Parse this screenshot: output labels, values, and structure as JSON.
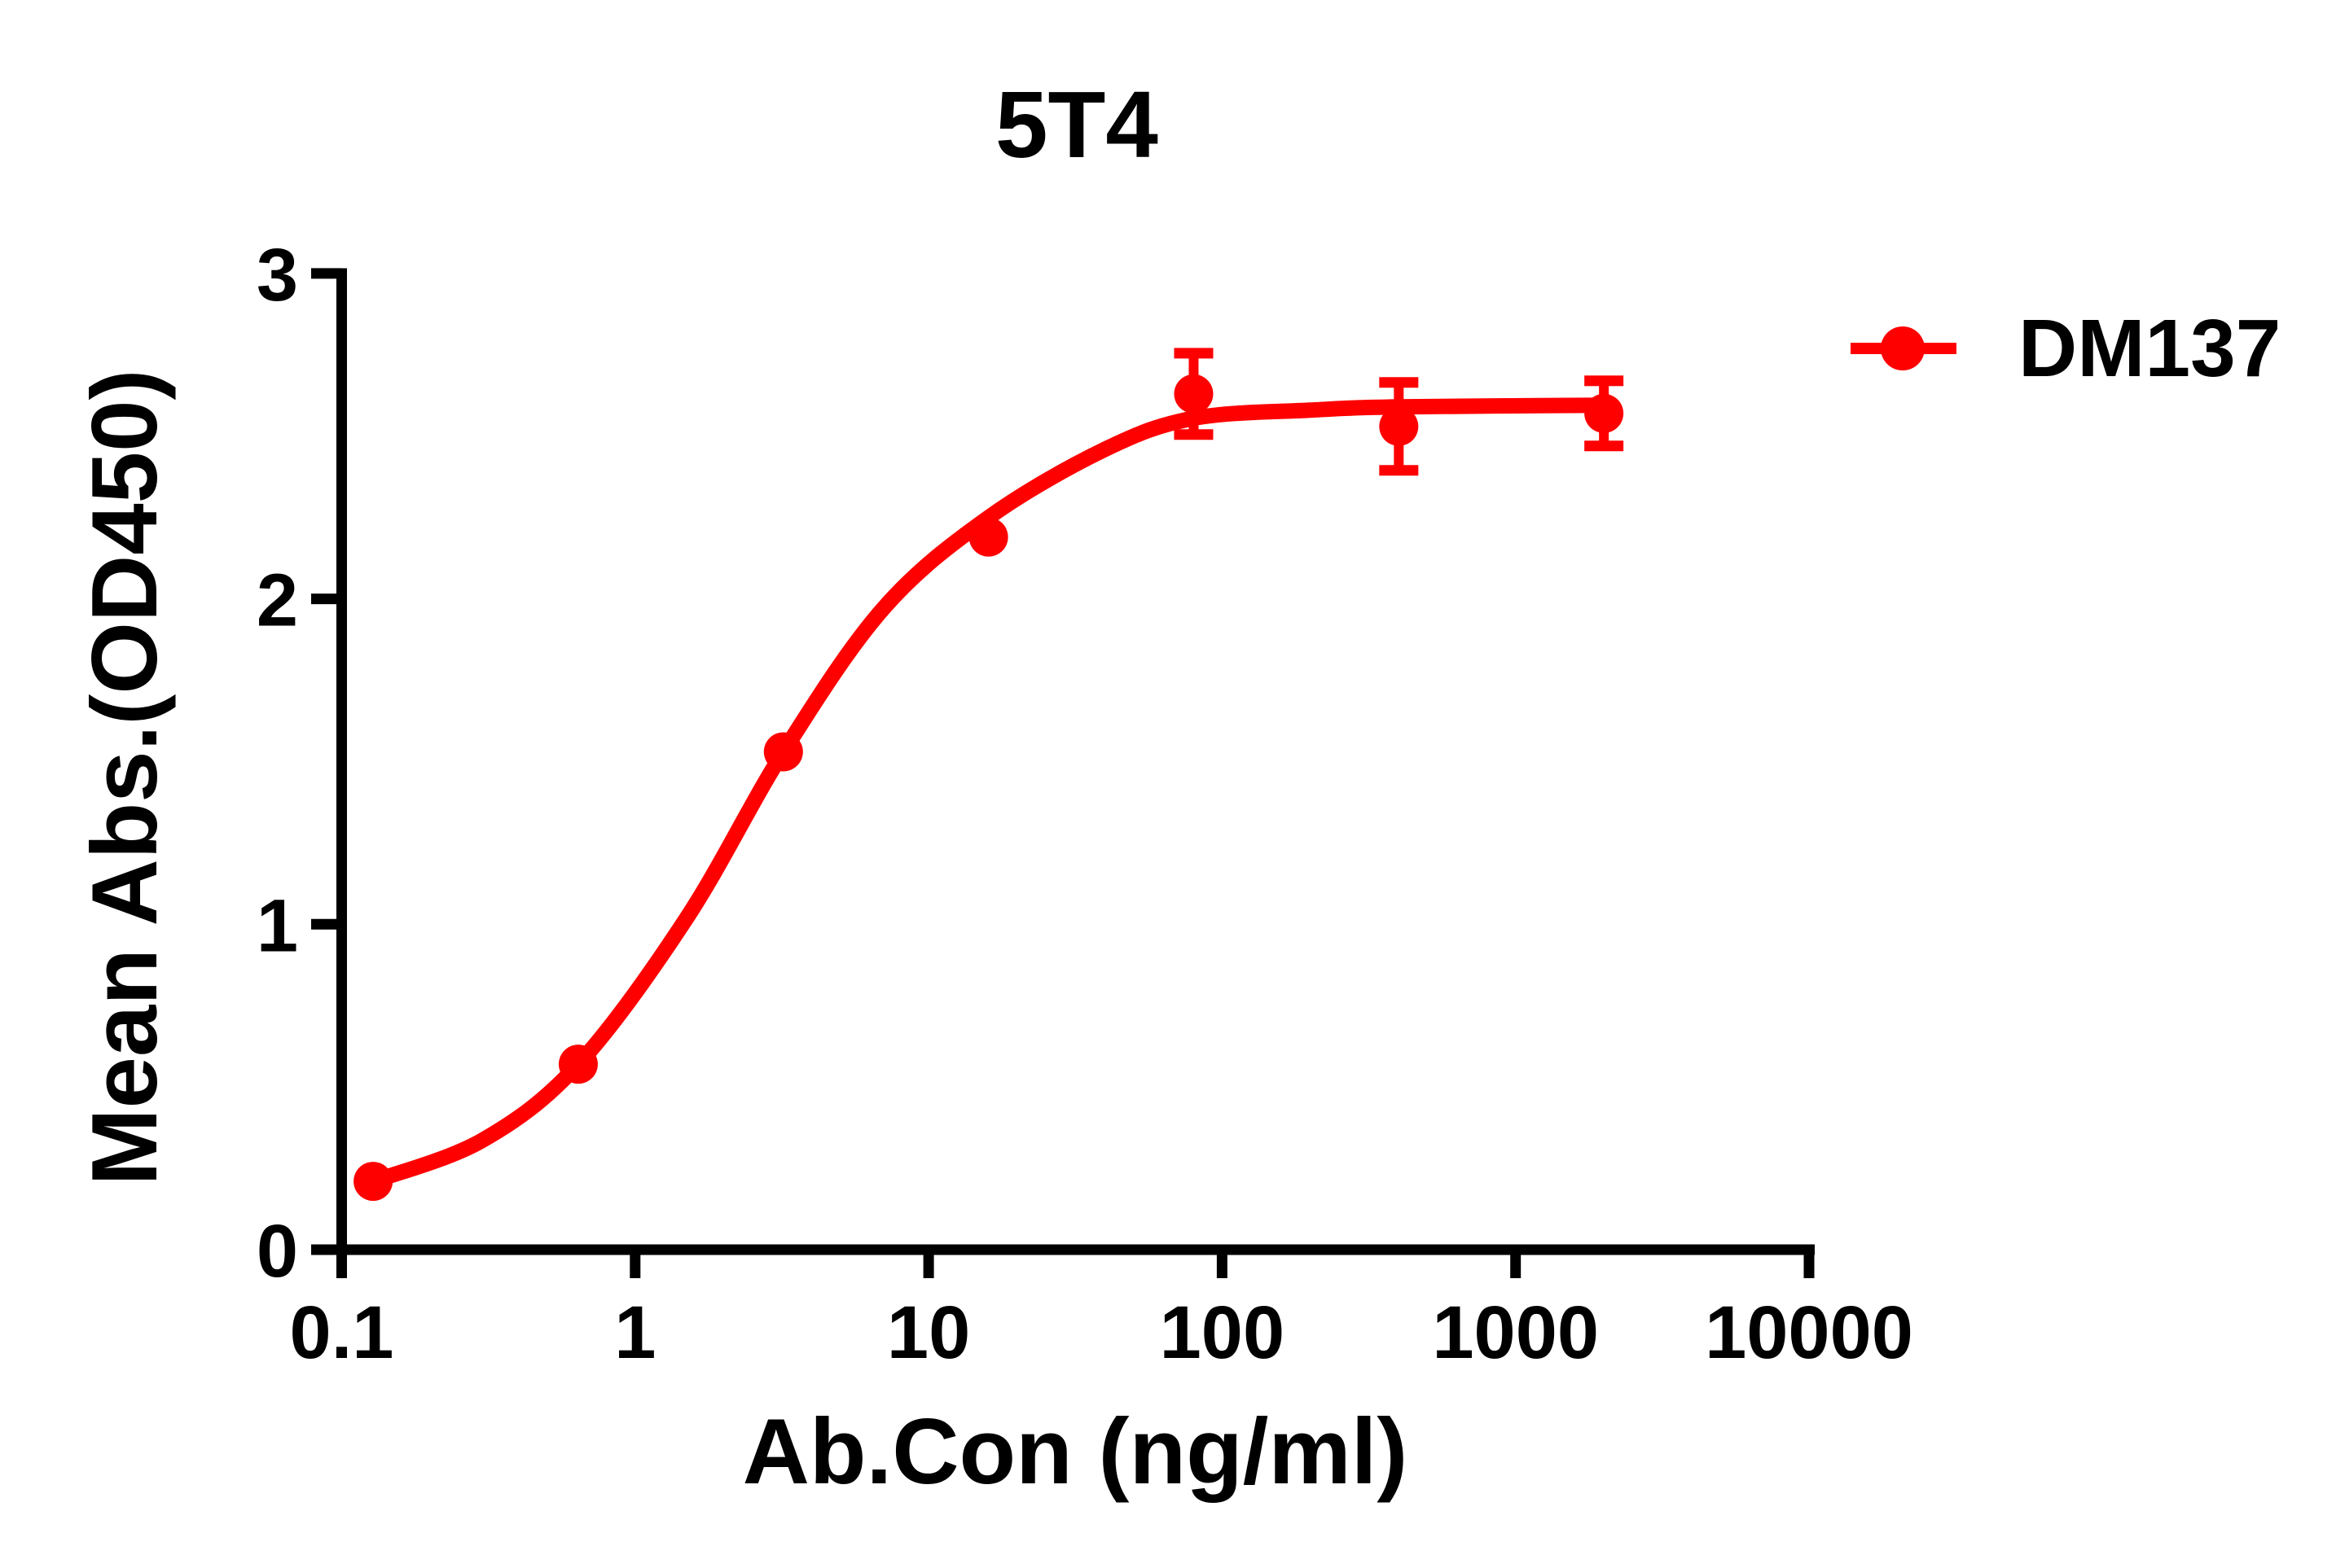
{
  "colors": {
    "series": "#ff0000",
    "axis": "#000000",
    "background": "#ffffff",
    "text": "#000000"
  },
  "legend": {
    "label": "DM137",
    "marker": "red-line-with-filled-circle"
  },
  "chart_data": {
    "type": "line",
    "title": "5T4",
    "xlabel": "Ab.Con (ng/ml)",
    "ylabel": "Mean Abs.(OD450)",
    "x_scale": "log10",
    "xlim": [
      0.1,
      10000
    ],
    "ylim": [
      0,
      3
    ],
    "x_ticks": [
      0.1,
      1,
      10,
      100,
      1000,
      10000
    ],
    "x_tick_labels": [
      "0.1",
      "1",
      "10",
      "100",
      "1000",
      "10000"
    ],
    "y_ticks": [
      0,
      1,
      2,
      3
    ],
    "y_tick_labels": [
      "0",
      "1",
      "2",
      "3"
    ],
    "grid": false,
    "legend_position": "right-of-plot-top",
    "series": [
      {
        "name": "DM137",
        "color": "#ff0000",
        "marker": "filled-circle",
        "x": [
          0.128,
          0.64,
          3.2,
          16,
          80,
          400,
          2000
        ],
        "y": [
          0.21,
          0.57,
          1.53,
          2.19,
          2.63,
          2.53,
          2.57
        ],
        "y_err": [
          0,
          0,
          0,
          0,
          0.125,
          0.135,
          0.1
        ],
        "fit_curve": {
          "x": [
            0.128,
            0.3,
            0.64,
            1.5,
            3.2,
            7,
            16,
            40,
            80,
            200,
            400,
            2000
          ],
          "y": [
            0.21,
            0.335,
            0.57,
            1.02,
            1.53,
            1.97,
            2.25,
            2.46,
            2.555,
            2.58,
            2.59,
            2.595
          ]
        }
      }
    ]
  }
}
